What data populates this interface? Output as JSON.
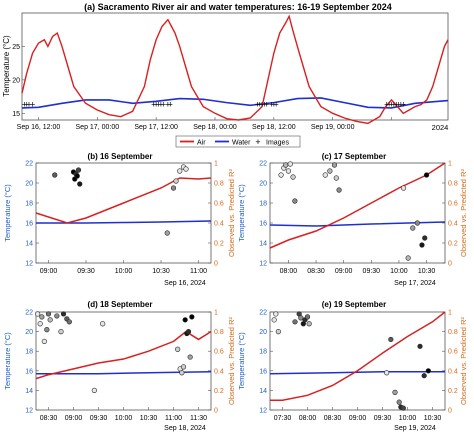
{
  "chart_data": [
    {
      "id": "a",
      "type": "line",
      "title": "(a) Sacramento River air and water temperatures: 16-19 September 2024",
      "ylabel": "Temperature (°C)",
      "ylim": [
        14,
        30
      ],
      "yticks": [
        15,
        20,
        25
      ],
      "xlim": [
        0.36,
        3.98
      ],
      "xticks": [
        0.5,
        1,
        1.5,
        2,
        2.5,
        3,
        3.5
      ],
      "xticklabels": [
        "Sep 16, 12:00",
        "Sep 17, 00:00",
        "Sep 17, 12:00",
        "Sep 18, 00:00",
        "Sep 18, 12:00",
        "Sep 19, 00:00",
        ""
      ],
      "year_label": "2024",
      "colors": {
        "air": "#d92020",
        "water": "#1f2fd0",
        "images": "#000000"
      },
      "series": [
        {
          "name": "Air",
          "x": [
            0.36,
            0.4,
            0.45,
            0.5,
            0.55,
            0.58,
            0.62,
            0.66,
            0.7,
            0.75,
            0.8,
            0.9,
            1.0,
            1.1,
            1.2,
            1.3,
            1.4,
            1.45,
            1.5,
            1.55,
            1.6,
            1.63,
            1.66,
            1.7,
            1.75,
            1.8,
            1.9,
            2.0,
            2.1,
            2.2,
            2.3,
            2.4,
            2.45,
            2.5,
            2.55,
            2.6,
            2.63,
            2.66,
            2.7,
            2.75,
            2.8,
            2.9,
            3.0,
            3.1,
            3.2,
            3.3,
            3.4,
            3.45,
            3.5,
            3.55,
            3.6,
            3.65,
            3.7,
            3.75,
            3.8,
            3.85,
            3.9,
            3.95,
            3.98
          ],
          "y": [
            18,
            21,
            24,
            25.5,
            26,
            25,
            26.5,
            27,
            25,
            22,
            19,
            16.5,
            15.5,
            14.8,
            14.5,
            15.3,
            19,
            23,
            26,
            28,
            29,
            28,
            27,
            25,
            22,
            19,
            16,
            15,
            14.2,
            14,
            14.3,
            16,
            20,
            24,
            27,
            28.5,
            29.5,
            27.5,
            25,
            22,
            19,
            16,
            15,
            14.3,
            13.8,
            13.5,
            14.5,
            16,
            17,
            16,
            15,
            15.5,
            16,
            16.3,
            17,
            19,
            22,
            25,
            26
          ]
        },
        {
          "name": "Water",
          "x": [
            0.36,
            0.5,
            0.7,
            0.9,
            1.1,
            1.3,
            1.5,
            1.7,
            1.9,
            2.1,
            2.3,
            2.5,
            2.7,
            2.9,
            3.1,
            3.3,
            3.5,
            3.7,
            3.9,
            3.98
          ],
          "y": [
            15.8,
            15.9,
            16.5,
            17,
            17,
            16.5,
            16.8,
            17.2,
            17.1,
            16.6,
            16.2,
            16.6,
            17.2,
            17.3,
            16.6,
            15.9,
            15.8,
            16.5,
            16.8,
            16.9
          ]
        },
        {
          "name": "Images",
          "x": [
            0.38,
            0.4,
            0.42,
            0.45,
            1.48,
            1.5,
            1.52,
            1.54,
            1.56,
            1.6,
            1.62,
            2.36,
            2.38,
            2.4,
            2.42,
            2.44,
            2.48,
            2.5,
            2.52,
            3.46,
            3.48,
            3.5,
            3.52,
            3.54,
            3.56,
            3.58,
            3.6
          ],
          "y": [
            16.3,
            16.3,
            16.3,
            16.3,
            16.3,
            16.3,
            16.3,
            16.3,
            16.3,
            16.3,
            16.3,
            16.3,
            16.3,
            16.3,
            16.3,
            16.3,
            16.3,
            16.3,
            16.3,
            16.3,
            16.3,
            16.3,
            16.3,
            16.3,
            16.3,
            16.3,
            16.3
          ]
        }
      ]
    },
    {
      "id": "b",
      "type": "line",
      "title": "(b) 16 September",
      "ylabel": "Temperature (°C)",
      "y2label": "Observed vs. Predicted R²",
      "ylim": [
        12,
        22
      ],
      "yticks": [
        12,
        14,
        16,
        18,
        20,
        22
      ],
      "y2lim": [
        0,
        1
      ],
      "y2ticks": [
        0,
        0.2,
        0.4,
        0.6,
        0.8,
        1
      ],
      "xlim": [
        "08:50",
        "11:10"
      ],
      "xticks": [
        "09:00",
        "09:30",
        "10:00",
        "10:30",
        "11:00"
      ],
      "date_label": "Sep 16, 2024",
      "series": [
        {
          "name": "Water",
          "axis": "left",
          "x": [
            "08:50",
            "09:30",
            "10:00",
            "10:30",
            "11:10"
          ],
          "y": [
            16.0,
            16.0,
            16.05,
            16.1,
            16.2
          ]
        },
        {
          "name": "R²",
          "axis": "right",
          "x": [
            "08:50",
            "09:15",
            "09:30",
            "10:00",
            "10:30",
            "10:45",
            "11:00",
            "11:10"
          ],
          "y": [
            0.5,
            0.4,
            0.45,
            0.6,
            0.75,
            0.85,
            0.84,
            0.85
          ]
        },
        {
          "name": "Images",
          "type": "scatter",
          "axis": "left",
          "x": [
            "09:05",
            "09:20",
            "09:21",
            "09:22",
            "09:23",
            "09:24",
            "09:25",
            "10:35",
            "10:40",
            "10:42",
            "10:45",
            "10:48",
            "10:50"
          ],
          "y": [
            20.8,
            21.1,
            20.4,
            20.9,
            20.7,
            21.3,
            19.9,
            15.0,
            19.5,
            20.2,
            21.2,
            21.6,
            21.4
          ],
          "fill": [
            0.4,
            0,
            0,
            0.2,
            0,
            0.3,
            0.1,
            0.7,
            0.6,
            0.9,
            1,
            1,
            1
          ]
        }
      ]
    },
    {
      "id": "c",
      "type": "line",
      "title": "(c) 17 September",
      "ylabel": "Temperature (°C)",
      "y2label": "Observed vs. Predicted R²",
      "ylim": [
        12,
        22
      ],
      "yticks": [
        12,
        14,
        16,
        18,
        20,
        22
      ],
      "y2lim": [
        0,
        1
      ],
      "y2ticks": [
        0,
        0.2,
        0.4,
        0.6,
        0.8,
        1
      ],
      "xlim": [
        "07:40",
        "10:50"
      ],
      "xticks": [
        "08:00",
        "08:30",
        "09:00",
        "09:30",
        "10:00",
        "10:30"
      ],
      "date_label": "Sep 17, 2024",
      "series": [
        {
          "name": "Water",
          "axis": "left",
          "x": [
            "07:40",
            "08:30",
            "09:30",
            "10:50"
          ],
          "y": [
            15.8,
            15.7,
            15.9,
            16.1
          ]
        },
        {
          "name": "R²",
          "axis": "right",
          "x": [
            "07:40",
            "08:00",
            "08:30",
            "09:00",
            "09:30",
            "10:00",
            "10:30",
            "10:50"
          ],
          "y": [
            0.15,
            0.23,
            0.32,
            0.45,
            0.6,
            0.75,
            0.88,
            1.0
          ]
        },
        {
          "name": "Images",
          "type": "scatter",
          "axis": "left",
          "x": [
            "07:52",
            "07:55",
            "07:57",
            "08:00",
            "08:02",
            "08:05",
            "08:07",
            "08:40",
            "08:45",
            "08:50",
            "08:52",
            "08:55",
            "10:05",
            "10:10",
            "10:15",
            "10:20",
            "10:25",
            "10:28",
            "10:30"
          ],
          "y": [
            20.8,
            21.5,
            21.8,
            21.2,
            21.9,
            20.6,
            18.2,
            20.8,
            21.2,
            21.8,
            20.5,
            19.3,
            19.5,
            12.5,
            15.5,
            16.0,
            13.8,
            14.5,
            20.8
          ],
          "fill": [
            1,
            1,
            0.8,
            1,
            1,
            0.9,
            0.6,
            1,
            0.8,
            0.7,
            0.9,
            0.6,
            1,
            0.8,
            0.7,
            0.6,
            0.1,
            0.2,
            0
          ]
        }
      ]
    },
    {
      "id": "d",
      "type": "line",
      "title": "(d) 18 September",
      "ylabel": "Temperature (°C)",
      "y2label": "Observed vs. Predicted R²",
      "ylim": [
        12,
        22
      ],
      "yticks": [
        12,
        14,
        16,
        18,
        20,
        22
      ],
      "y2lim": [
        0,
        1
      ],
      "y2ticks": [
        0,
        0.2,
        0.4,
        0.6,
        0.8,
        1
      ],
      "xlim": [
        "08:15",
        "11:45"
      ],
      "xticks": [
        "08:30",
        "09:00",
        "09:30",
        "10:00",
        "10:30",
        "11:00",
        "11:30"
      ],
      "date_label": "Sep 18, 2024",
      "series": [
        {
          "name": "Water",
          "axis": "left",
          "x": [
            "08:15",
            "09:30",
            "10:30",
            "11:45"
          ],
          "y": [
            15.7,
            15.7,
            15.8,
            15.9
          ]
        },
        {
          "name": "R²",
          "axis": "right",
          "x": [
            "08:15",
            "08:30",
            "09:00",
            "09:30",
            "10:00",
            "10:30",
            "11:00",
            "11:15",
            "11:30",
            "11:45"
          ],
          "y": [
            0.32,
            0.36,
            0.42,
            0.48,
            0.52,
            0.6,
            0.7,
            0.8,
            0.72,
            0.8
          ]
        },
        {
          "name": "Images",
          "type": "scatter",
          "axis": "left",
          "x": [
            "08:17",
            "08:20",
            "08:22",
            "08:25",
            "08:28",
            "08:30",
            "08:32",
            "08:40",
            "08:45",
            "08:48",
            "08:52",
            "08:55",
            "09:25",
            "09:35",
            "11:05",
            "11:08",
            "11:10",
            "11:12",
            "11:14",
            "11:16",
            "11:18",
            "11:20",
            "11:22"
          ],
          "y": [
            21.8,
            20.8,
            21.5,
            19.0,
            20.2,
            21.8,
            21.2,
            21.6,
            20.0,
            21.8,
            21.3,
            21.0,
            14.0,
            20.8,
            18.2,
            16.2,
            15.8,
            16.4,
            21.2,
            19.8,
            20.0,
            17.4,
            21.5
          ],
          "fill": [
            1,
            1,
            0.7,
            1,
            0.6,
            0.5,
            0.8,
            0.6,
            0.9,
            0.2,
            0.4,
            0.5,
            1,
            1,
            0.9,
            1,
            0.9,
            0.9,
            0,
            0.1,
            0.2,
            0.7,
            0
          ]
        }
      ]
    },
    {
      "id": "e",
      "type": "line",
      "title": "(e) 19 September",
      "ylabel": "Temperature (°C)",
      "y2label": "Observed vs. Predicted R²",
      "ylim": [
        12,
        22
      ],
      "yticks": [
        12,
        14,
        16,
        18,
        20,
        22
      ],
      "y2lim": [
        0,
        1
      ],
      "y2ticks": [
        0,
        0.2,
        0.4,
        0.6,
        0.8,
        1
      ],
      "xlim": [
        "07:15",
        "10:45"
      ],
      "xticks": [
        "07:30",
        "08:00",
        "08:30",
        "09:00",
        "09:30",
        "10:00",
        "10:30"
      ],
      "date_label": "Sep 19, 2024",
      "series": [
        {
          "name": "Water",
          "axis": "left",
          "x": [
            "07:15",
            "08:30",
            "09:30",
            "10:45"
          ],
          "y": [
            15.7,
            15.8,
            15.9,
            15.9
          ]
        },
        {
          "name": "R²",
          "axis": "right",
          "x": [
            "07:15",
            "07:30",
            "08:00",
            "08:30",
            "09:00",
            "09:30",
            "10:00",
            "10:30",
            "10:45"
          ],
          "y": [
            0.1,
            0.1,
            0.15,
            0.25,
            0.4,
            0.58,
            0.75,
            0.9,
            1.0
          ]
        },
        {
          "name": "Images",
          "type": "scatter",
          "axis": "left",
          "x": [
            "07:20",
            "07:22",
            "07:25",
            "07:45",
            "07:50",
            "07:52",
            "07:55",
            "07:57",
            "08:00",
            "08:02",
            "09:35",
            "09:40",
            "09:45",
            "09:50",
            "09:52",
            "09:55",
            "10:15",
            "10:20",
            "10:25"
          ],
          "y": [
            21.2,
            21.8,
            20.0,
            21.0,
            21.8,
            21.4,
            20.8,
            21.2,
            21.5,
            20.8,
            15.8,
            19.2,
            13.8,
            12.8,
            12.3,
            12.2,
            18.5,
            15.5,
            16.0
          ],
          "fill": [
            1,
            1,
            0.9,
            0.5,
            0.3,
            0.6,
            0.1,
            0.2,
            0.5,
            0.8,
            1,
            0.4,
            0.7,
            0.6,
            0.2,
            0.3,
            0.2,
            0.2,
            0
          ]
        }
      ]
    }
  ],
  "legend": {
    "air": "Air",
    "water": "Water",
    "images": "Images"
  }
}
